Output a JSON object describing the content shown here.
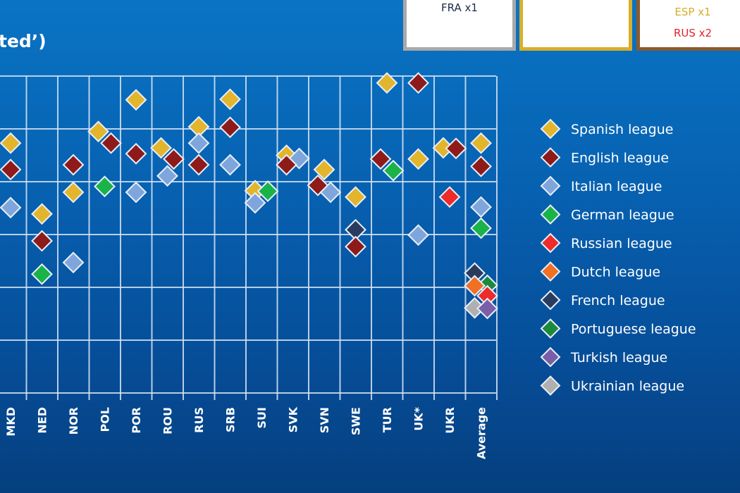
{
  "header": {
    "title_fragment": "ted’)",
    "boxes": [
      {
        "lines": [
          "FRA x1"
        ],
        "border_color": "#a9a9a9"
      },
      {
        "lines": [],
        "border_color": "#d8ae2a"
      },
      {
        "lines": [
          "ESP x1",
          "RUS x2"
        ],
        "border_color": "#8a5a2e"
      }
    ]
  },
  "chart_data": {
    "type": "scatter",
    "title": "",
    "xlabel": "",
    "ylabel": "",
    "ylim": [
      0,
      6
    ],
    "grid": true,
    "legend_position": "right",
    "categories": [
      "MKD",
      "NED",
      "NOR",
      "POL",
      "POR",
      "ROU",
      "RUS",
      "SRB",
      "SUI",
      "SVK",
      "SVN",
      "SWE",
      "TUR",
      "UK*",
      "UKR",
      "Average"
    ],
    "series": [
      {
        "name": "Spanish league",
        "color": "#e2b52c",
        "values": [
          4.73,
          3.39,
          3.8,
          4.95,
          5.55,
          4.64,
          5.04,
          5.56,
          3.83,
          4.5,
          4.23,
          3.71,
          5.87,
          4.43,
          4.64,
          4.73
        ]
      },
      {
        "name": "English league",
        "color": "#8e1a1a",
        "values": [
          4.23,
          2.88,
          4.32,
          4.73,
          4.53,
          4.43,
          4.32,
          5.03,
          null,
          4.32,
          3.93,
          2.77,
          4.43,
          5.87,
          4.63,
          4.29
        ]
      },
      {
        "name": "Italian league",
        "color": "#7fa6dc",
        "values": [
          3.51,
          null,
          2.47,
          null,
          3.8,
          4.11,
          4.73,
          4.32,
          3.6,
          4.44,
          3.8,
          null,
          null,
          2.99,
          null,
          3.52
        ]
      },
      {
        "name": "German league",
        "color": "#19b348",
        "values": [
          null,
          2.25,
          null,
          3.91,
          null,
          null,
          null,
          null,
          3.82,
          null,
          null,
          null,
          4.21,
          null,
          null,
          3.12
        ]
      },
      {
        "name": "Russian league",
        "color": "#ee2a2a",
        "values": [
          null,
          null,
          null,
          null,
          null,
          null,
          null,
          null,
          null,
          null,
          null,
          null,
          null,
          null,
          3.71,
          1.84
        ]
      },
      {
        "name": "Dutch league",
        "color": "#f07024",
        "values": [
          null,
          null,
          null,
          null,
          null,
          null,
          null,
          null,
          null,
          null,
          null,
          null,
          null,
          null,
          null,
          2.03
        ]
      },
      {
        "name": "French league",
        "color": "#2a3c5e",
        "values": [
          null,
          null,
          null,
          null,
          null,
          null,
          null,
          null,
          null,
          null,
          null,
          3.09,
          null,
          null,
          null,
          2.27
        ]
      },
      {
        "name": "Portuguese league",
        "color": "#1c8a3c",
        "values": [
          null,
          null,
          null,
          null,
          null,
          null,
          null,
          null,
          null,
          null,
          null,
          null,
          null,
          null,
          null,
          2.04
        ]
      },
      {
        "name": "Turkish league",
        "color": "#7a5ea8",
        "values": [
          null,
          null,
          null,
          null,
          null,
          null,
          null,
          null,
          null,
          null,
          null,
          null,
          null,
          null,
          null,
          1.6
        ]
      },
      {
        "name": "Ukrainian league",
        "color": "#b0b0b0",
        "values": [
          null,
          null,
          null,
          null,
          null,
          null,
          null,
          null,
          null,
          null,
          null,
          null,
          null,
          null,
          null,
          1.61
        ]
      }
    ]
  }
}
